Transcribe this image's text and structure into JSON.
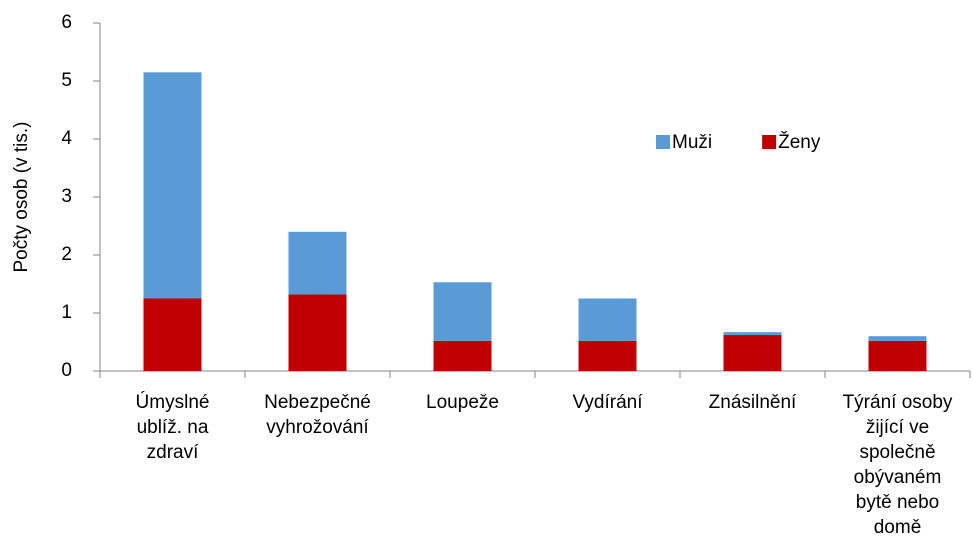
{
  "chart_data": {
    "type": "bar",
    "stacked": true,
    "y_label": "Počty osob (v tis.)",
    "categories": [
      [
        "Úmyslné",
        "ublíž. na",
        "zdraví"
      ],
      [
        "Nebezpečné",
        "vyhrožování"
      ],
      [
        "Loupeže"
      ],
      [
        "Vydírání"
      ],
      [
        "Znásilnění"
      ],
      [
        "Týrání osoby",
        "žijící ve",
        "společně",
        "obývaném",
        "bytě nebo",
        "domě"
      ]
    ],
    "series": [
      {
        "name": "Muži",
        "color": "#5b9bd5",
        "values": [
          3.9,
          1.08,
          1.01,
          0.73,
          0.05,
          0.08
        ]
      },
      {
        "name": "Ženy",
        "color": "#c00000",
        "values": [
          1.25,
          1.32,
          0.52,
          0.52,
          0.62,
          0.52
        ]
      }
    ],
    "ylim": [
      0,
      6
    ],
    "yticks": [
      0,
      1,
      2,
      3,
      4,
      5,
      6
    ],
    "grid": false,
    "legend": "top-right"
  }
}
